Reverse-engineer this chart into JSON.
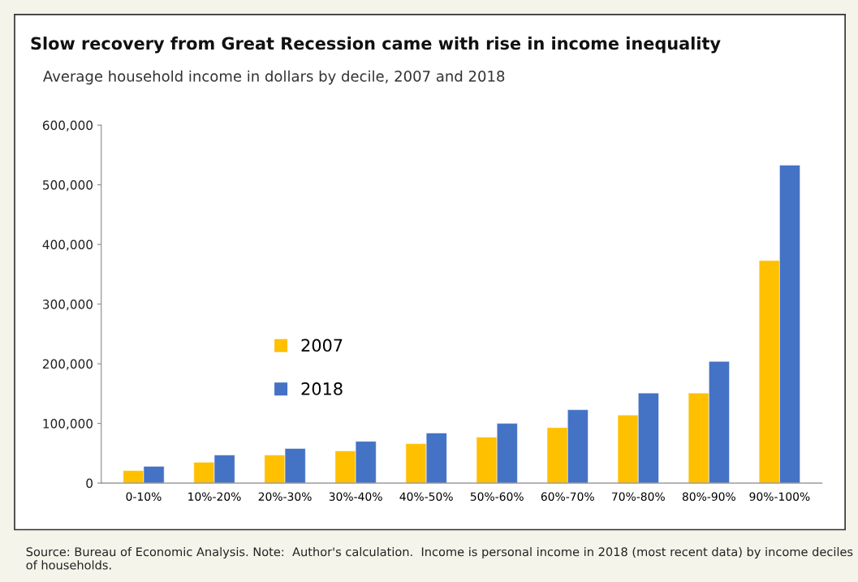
{
  "chart_data": {
    "type": "bar",
    "title": "Slow recovery from Great Recession came with rise in income inequality",
    "subtitle": "Average household income in dollars by decile, 2007 and 2018",
    "categories": [
      "0-10%",
      "10%-20%",
      "20%-30%",
      "30%-40%",
      "40%-50%",
      "50%-60%",
      "60%-70%",
      "70%-80%",
      "80%-90%",
      "90%-100%"
    ],
    "series": [
      {
        "name": "2007",
        "color": "#ffc000",
        "values": [
          21000,
          35000,
          47000,
          54000,
          66000,
          77000,
          93000,
          114000,
          151000,
          373000
        ]
      },
      {
        "name": "2018",
        "color": "#4472c4",
        "values": [
          28000,
          47000,
          58000,
          70000,
          84000,
          100000,
          123000,
          151000,
          204000,
          533000
        ]
      }
    ],
    "ylim": [
      0,
      600000
    ],
    "yticks": [
      {
        "value": 0,
        "label": "0"
      },
      {
        "value": 100000,
        "label": "100,000"
      },
      {
        "value": 200000,
        "label": "200,000"
      },
      {
        "value": 300000,
        "label": "300,000"
      },
      {
        "value": 400000,
        "label": "400,000"
      },
      {
        "value": 500000,
        "label": "500,000"
      },
      {
        "value": 600000,
        "label": "600,000"
      }
    ],
    "grid": false,
    "legend": "left",
    "annotations": [
      "Source: Bureau of Economic Analysis. Note:  Author's calculation.  Income is personal income in 2018 (most recent data) by income deciles of households."
    ]
  }
}
